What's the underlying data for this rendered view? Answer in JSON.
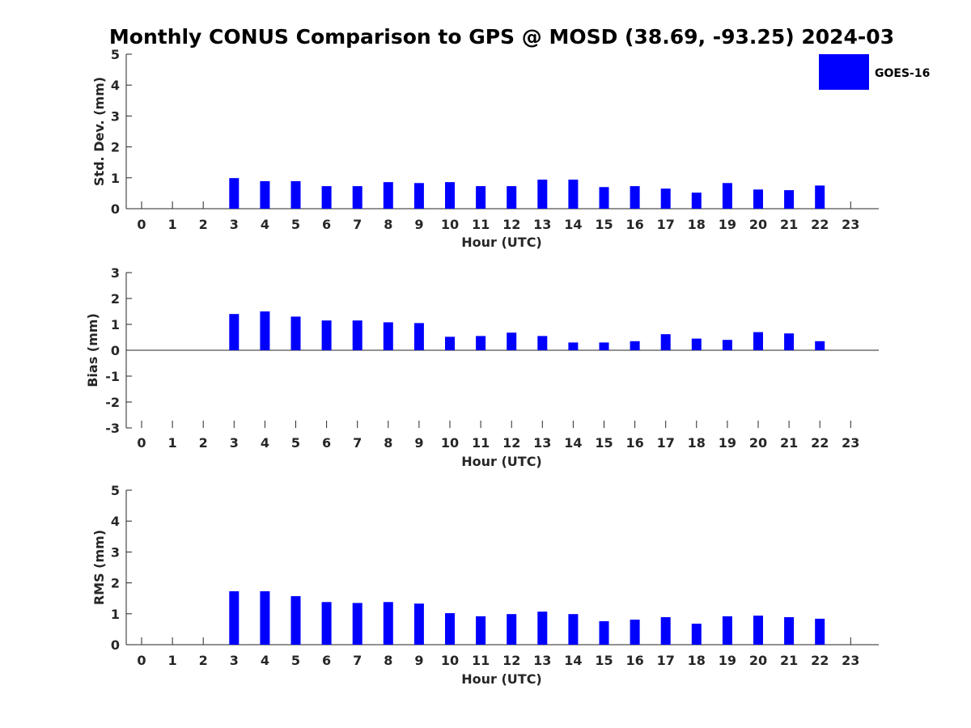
{
  "figure": {
    "title": "Monthly CONUS Comparison to GPS @ MOSD (38.69, -93.25) 2024-03"
  },
  "legend": {
    "label": "GOES-16",
    "color": "#0000ff",
    "placement": "top-right"
  },
  "chart_data": [
    {
      "type": "bar",
      "series": [
        {
          "name": "GOES-16",
          "color": "#0000ff",
          "values": [
            null,
            null,
            null,
            0.99,
            0.89,
            0.89,
            0.73,
            0.73,
            0.86,
            0.83,
            0.86,
            0.73,
            0.73,
            0.94,
            0.94,
            0.7,
            0.73,
            0.65,
            0.52,
            0.83,
            0.62,
            0.6,
            0.75,
            null
          ]
        }
      ],
      "categories": [
        "0",
        "1",
        "2",
        "3",
        "4",
        "5",
        "6",
        "7",
        "8",
        "9",
        "10",
        "11",
        "12",
        "13",
        "14",
        "15",
        "16",
        "17",
        "18",
        "19",
        "20",
        "21",
        "22",
        "23"
      ],
      "xlabel": "Hour (UTC)",
      "ylabel": "Std. Dev. (mm)",
      "ylim": [
        0,
        5
      ],
      "yticks": [
        "0",
        "1",
        "2",
        "3",
        "4",
        "5"
      ],
      "grid": false
    },
    {
      "type": "bar",
      "series": [
        {
          "name": "GOES-16",
          "color": "#0000ff",
          "values": [
            null,
            null,
            null,
            1.4,
            1.5,
            1.3,
            1.15,
            1.15,
            1.08,
            1.05,
            0.52,
            0.55,
            0.68,
            0.55,
            0.3,
            0.3,
            0.35,
            0.62,
            0.45,
            0.4,
            0.7,
            0.65,
            0.35,
            null
          ]
        }
      ],
      "categories": [
        "0",
        "1",
        "2",
        "3",
        "4",
        "5",
        "6",
        "7",
        "8",
        "9",
        "10",
        "11",
        "12",
        "13",
        "14",
        "15",
        "16",
        "17",
        "18",
        "19",
        "20",
        "21",
        "22",
        "23"
      ],
      "xlabel": "Hour (UTC)",
      "ylabel": "Bias (mm)",
      "ylim": [
        -3,
        3
      ],
      "yticks": [
        "-3",
        "-2",
        "-1",
        "0",
        "1",
        "2",
        "3"
      ],
      "grid": false
    },
    {
      "type": "bar",
      "series": [
        {
          "name": "GOES-16",
          "color": "#0000ff",
          "values": [
            null,
            null,
            null,
            1.73,
            1.73,
            1.57,
            1.38,
            1.35,
            1.38,
            1.33,
            1.02,
            0.92,
            0.99,
            1.07,
            0.99,
            0.76,
            0.81,
            0.89,
            0.68,
            0.92,
            0.94,
            0.89,
            0.84,
            null
          ]
        }
      ],
      "categories": [
        "0",
        "1",
        "2",
        "3",
        "4",
        "5",
        "6",
        "7",
        "8",
        "9",
        "10",
        "11",
        "12",
        "13",
        "14",
        "15",
        "16",
        "17",
        "18",
        "19",
        "20",
        "21",
        "22",
        "23"
      ],
      "xlabel": "Hour (UTC)",
      "ylabel": "RMS (mm)",
      "ylim": [
        0,
        5
      ],
      "yticks": [
        "0",
        "1",
        "2",
        "3",
        "4",
        "5"
      ],
      "grid": false
    }
  ]
}
